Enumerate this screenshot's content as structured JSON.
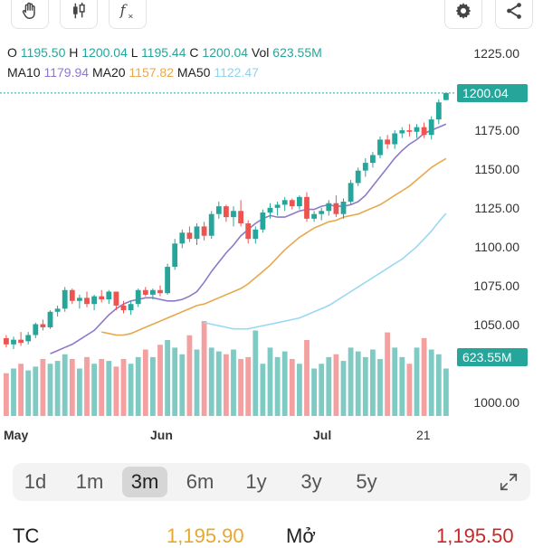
{
  "toolbar": {
    "buttons": [
      {
        "name": "hand-tool-icon"
      },
      {
        "name": "candlestick-type-icon"
      },
      {
        "name": "indicator-fx-icon"
      },
      {
        "name": "settings-gear-icon"
      },
      {
        "name": "share-icon"
      }
    ]
  },
  "ohlc": {
    "o_label": "O",
    "o_value": "1195.50",
    "h_label": "H",
    "h_value": "1200.04",
    "l_label": "L",
    "l_value": "1195.44",
    "c_label": "C",
    "c_value": "1200.04",
    "vol_label": "Vol",
    "vol_value": "623.55M"
  },
  "ma": {
    "ma10_label": "MA10",
    "ma10_value": "1179.94",
    "ma20_label": "MA20",
    "ma20_value": "1157.82",
    "ma50_label": "MA50",
    "ma50_value": "1122.47"
  },
  "colors": {
    "up": "#26a69a",
    "down": "#ef5350",
    "vol_up": "#7fcbc4",
    "vol_down": "#f4a0a0",
    "ma10": "#8e78c9",
    "ma20": "#e8a84c",
    "ma50": "#9ad8f2"
  },
  "axis": {
    "price_ticks": [
      "1225.00",
      "1175.00",
      "1150.00",
      "1125.00",
      "1100.00",
      "1075.00",
      "1050.00",
      "1000.00"
    ],
    "last_price_badge": "1200.04",
    "volume_badge": "623.55M",
    "months": [
      "May",
      "Jun",
      "Jul",
      "21"
    ]
  },
  "range_tabs": [
    "1d",
    "1m",
    "3m",
    "6m",
    "1y",
    "3y",
    "5y"
  ],
  "active_range": "3m",
  "bottom": {
    "tc_label": "TC",
    "tc_value": "1,195.90",
    "mo_label": "Mở",
    "mo_value": "1,195.50"
  },
  "chart_data": {
    "type": "candlestick",
    "y_range": [
      1000,
      1225
    ],
    "candles": [
      [
        1042,
        1044,
        1036,
        1038
      ],
      [
        1038,
        1043,
        1035,
        1041
      ],
      [
        1041,
        1046,
        1037,
        1039
      ],
      [
        1040,
        1046,
        1038,
        1044
      ],
      [
        1044,
        1052,
        1042,
        1051
      ],
      [
        1051,
        1054,
        1047,
        1049
      ],
      [
        1049,
        1060,
        1048,
        1059
      ],
      [
        1059,
        1063,
        1056,
        1061
      ],
      [
        1061,
        1075,
        1059,
        1073
      ],
      [
        1073,
        1074,
        1064,
        1066
      ],
      [
        1066,
        1070,
        1061,
        1068
      ],
      [
        1068,
        1072,
        1062,
        1064
      ],
      [
        1064,
        1070,
        1060,
        1069
      ],
      [
        1069,
        1073,
        1065,
        1067
      ],
      [
        1067,
        1073,
        1064,
        1072
      ],
      [
        1072,
        1072,
        1060,
        1063
      ],
      [
        1063,
        1066,
        1058,
        1060
      ],
      [
        1060,
        1066,
        1057,
        1064
      ],
      [
        1064,
        1074,
        1062,
        1073
      ],
      [
        1073,
        1075,
        1069,
        1070
      ],
      [
        1070,
        1074,
        1067,
        1073
      ],
      [
        1073,
        1076,
        1069,
        1071
      ],
      [
        1071,
        1090,
        1070,
        1088
      ],
      [
        1088,
        1106,
        1086,
        1103
      ],
      [
        1103,
        1112,
        1100,
        1110
      ],
      [
        1110,
        1114,
        1104,
        1106
      ],
      [
        1106,
        1116,
        1102,
        1114
      ],
      [
        1114,
        1117,
        1105,
        1108
      ],
      [
        1108,
        1124,
        1106,
        1122
      ],
      [
        1122,
        1130,
        1119,
        1127
      ],
      [
        1127,
        1128,
        1117,
        1120
      ],
      [
        1120,
        1127,
        1114,
        1124
      ],
      [
        1124,
        1131,
        1114,
        1116
      ],
      [
        1116,
        1118,
        1103,
        1106
      ],
      [
        1106,
        1114,
        1103,
        1112
      ],
      [
        1112,
        1125,
        1110,
        1123
      ],
      [
        1123,
        1129,
        1119,
        1126
      ],
      [
        1126,
        1130,
        1121,
        1128
      ],
      [
        1128,
        1133,
        1124,
        1131
      ],
      [
        1131,
        1132,
        1125,
        1127
      ],
      [
        1127,
        1134,
        1125,
        1133
      ],
      [
        1133,
        1136,
        1117,
        1119
      ],
      [
        1119,
        1124,
        1117,
        1122
      ],
      [
        1122,
        1126,
        1118,
        1124
      ],
      [
        1124,
        1131,
        1121,
        1129
      ],
      [
        1129,
        1134,
        1120,
        1122
      ],
      [
        1122,
        1132,
        1119,
        1130
      ],
      [
        1130,
        1144,
        1128,
        1142
      ],
      [
        1142,
        1152,
        1140,
        1150
      ],
      [
        1150,
        1158,
        1146,
        1155
      ],
      [
        1155,
        1162,
        1152,
        1160
      ],
      [
        1160,
        1172,
        1158,
        1170
      ],
      [
        1170,
        1173,
        1164,
        1167
      ],
      [
        1167,
        1176,
        1164,
        1174
      ],
      [
        1174,
        1178,
        1171,
        1176
      ],
      [
        1176,
        1180,
        1172,
        1175
      ],
      [
        1175,
        1180,
        1171,
        1178
      ],
      [
        1178,
        1181,
        1171,
        1173
      ],
      [
        1173,
        1185,
        1170,
        1183
      ],
      [
        1183,
        1196,
        1180,
        1194
      ],
      [
        1195.5,
        1200.04,
        1195.44,
        1200.04
      ]
    ],
    "volume_relative": [
      0.45,
      0.5,
      0.55,
      0.48,
      0.52,
      0.6,
      0.55,
      0.58,
      0.65,
      0.6,
      0.5,
      0.62,
      0.55,
      0.6,
      0.58,
      0.52,
      0.6,
      0.55,
      0.62,
      0.7,
      0.62,
      0.75,
      0.8,
      0.72,
      0.65,
      0.85,
      0.7,
      1.0,
      0.72,
      0.68,
      0.65,
      0.7,
      0.6,
      0.62,
      0.9,
      0.55,
      0.72,
      0.62,
      0.68,
      0.6,
      0.55,
      0.8,
      0.5,
      0.55,
      0.62,
      0.65,
      0.58,
      0.72,
      0.68,
      0.62,
      0.7,
      0.6,
      0.88,
      0.72,
      0.62,
      0.55,
      0.72,
      0.82,
      0.7,
      0.65,
      0.5
    ],
    "ma10": [
      1032,
      1034,
      1036,
      1038,
      1041,
      1044,
      1047,
      1052,
      1057,
      1061,
      1064,
      1066,
      1067,
      1068,
      1068,
      1067,
      1066,
      1066,
      1067,
      1069,
      1072,
      1078,
      1085,
      1091,
      1097,
      1102,
      1108,
      1112,
      1116,
      1119,
      1121,
      1120,
      1120,
      1122,
      1124,
      1125,
      1125,
      1127,
      1128,
      1127,
      1127,
      1128,
      1130,
      1134,
      1140,
      1146,
      1152,
      1158,
      1163,
      1167,
      1170,
      1174,
      1176,
      1178,
      1179.94
    ],
    "ma20": [
      1046,
      1045,
      1044,
      1044,
      1045,
      1047,
      1049,
      1051,
      1053,
      1055,
      1057,
      1059,
      1061,
      1063,
      1064,
      1066,
      1068,
      1070,
      1072,
      1074,
      1077,
      1081,
      1085,
      1089,
      1094,
      1099,
      1103,
      1107,
      1110,
      1113,
      1115,
      1117,
      1118,
      1120,
      1121,
      1122,
      1124,
      1126,
      1128,
      1131,
      1134,
      1137,
      1140,
      1144,
      1148,
      1152,
      1155,
      1157.82
    ],
    "ma50": [
      1052,
      1051,
      1050,
      1049,
      1048,
      1048,
      1048,
      1049,
      1050,
      1051,
      1052,
      1053,
      1054,
      1055,
      1057,
      1059,
      1061,
      1063,
      1066,
      1069,
      1072,
      1075,
      1078,
      1081,
      1084,
      1087,
      1090,
      1093,
      1097,
      1101,
      1106,
      1111,
      1117,
      1122.47
    ]
  }
}
